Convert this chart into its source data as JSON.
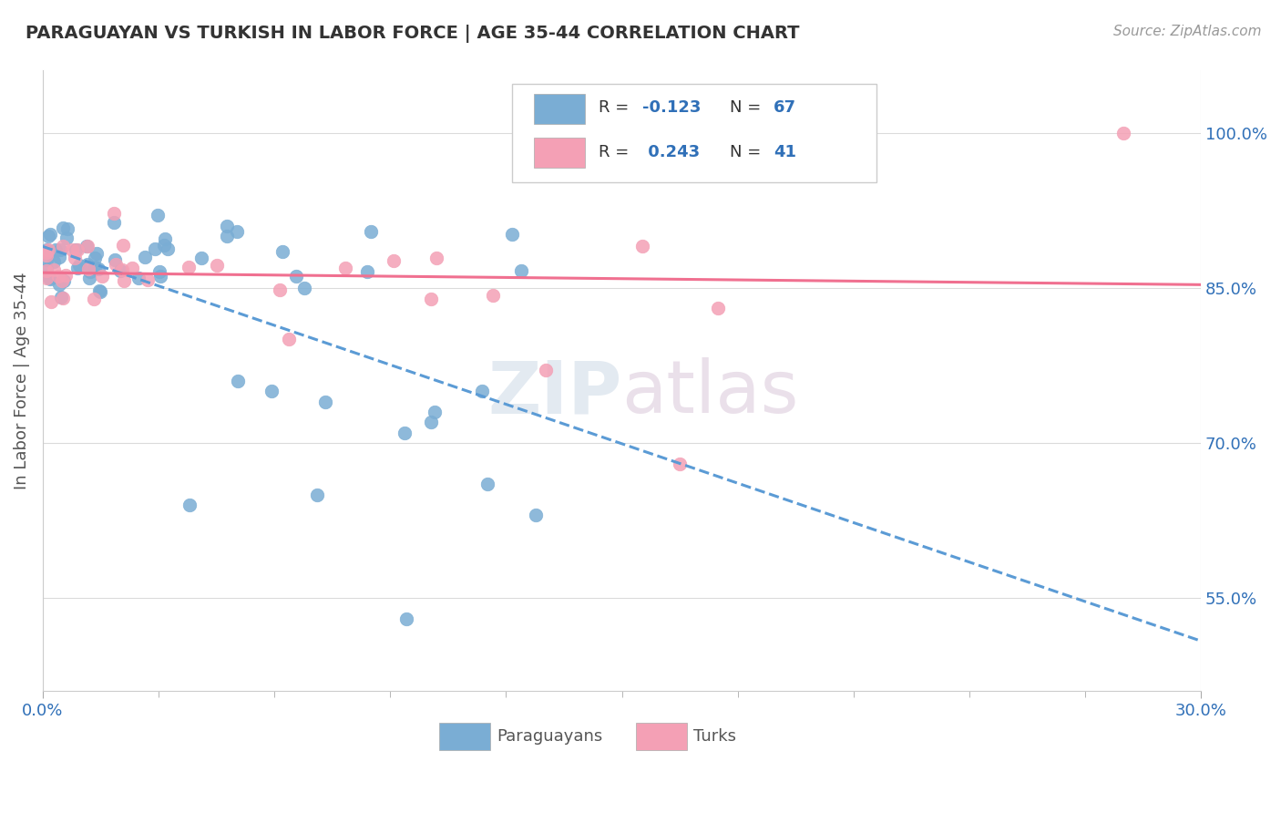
{
  "title": "PARAGUAYAN VS TURKISH IN LABOR FORCE | AGE 35-44 CORRELATION CHART",
  "source_text": "Source: ZipAtlas.com",
  "ylabel": "In Labor Force | Age 35-44",
  "blue_color": "#7aadd4",
  "pink_color": "#f4a0b5",
  "blue_line_color": "#5b9bd5",
  "pink_line_color": "#f07090",
  "r_value_color": "#3070b8",
  "xlim": [
    0.0,
    0.3
  ],
  "ylim": [
    0.46,
    1.06
  ],
  "yticks": [
    0.55,
    0.7,
    0.85,
    1.0
  ],
  "ytick_labels": [
    "55.0%",
    "70.0%",
    "85.0%",
    "100.0%"
  ],
  "blue_R": -0.123,
  "blue_N": 67,
  "pink_R": 0.243,
  "pink_N": 41,
  "watermark_zip": "ZIP",
  "watermark_atlas": "atlas",
  "background_color": "#ffffff",
  "grid_color": "#cccccc"
}
